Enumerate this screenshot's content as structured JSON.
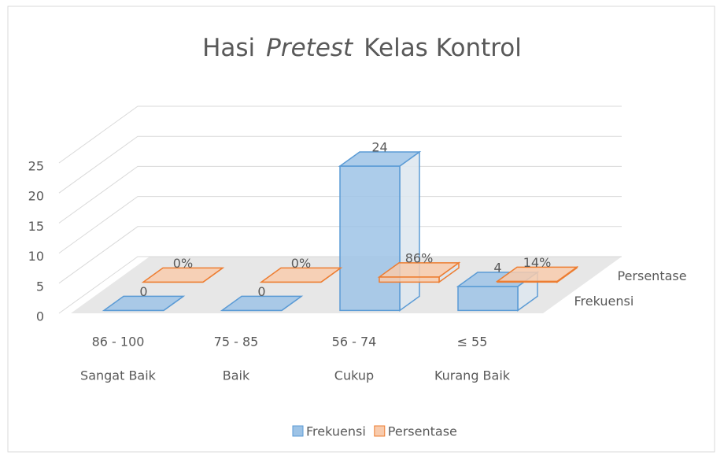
{
  "chart_data": {
    "type": "bar3d",
    "title": [
      "Hasi",
      "Pretest",
      "Kelas Kontrol"
    ],
    "categories": [
      [
        "86 - 100",
        "Sangat Baik"
      ],
      [
        "75 - 85",
        "Baik"
      ],
      [
        "56 - 74",
        "Cukup"
      ],
      [
        "≤ 55",
        "Kurang Baik"
      ]
    ],
    "series": [
      {
        "name": "Frekuensi",
        "color": "#5b9bd5",
        "values": [
          0,
          0,
          24,
          4
        ]
      },
      {
        "name": "Persentase",
        "color": "#ed7d31",
        "values": [
          0,
          0,
          0.86,
          0.14
        ],
        "value_labels": [
          "0%",
          "0%",
          "86%",
          "14%"
        ]
      }
    ],
    "ylim": [
      0,
      25
    ],
    "yticks": [
      0,
      5,
      10,
      15,
      20,
      25
    ],
    "grid": true,
    "legend": "bottom"
  }
}
